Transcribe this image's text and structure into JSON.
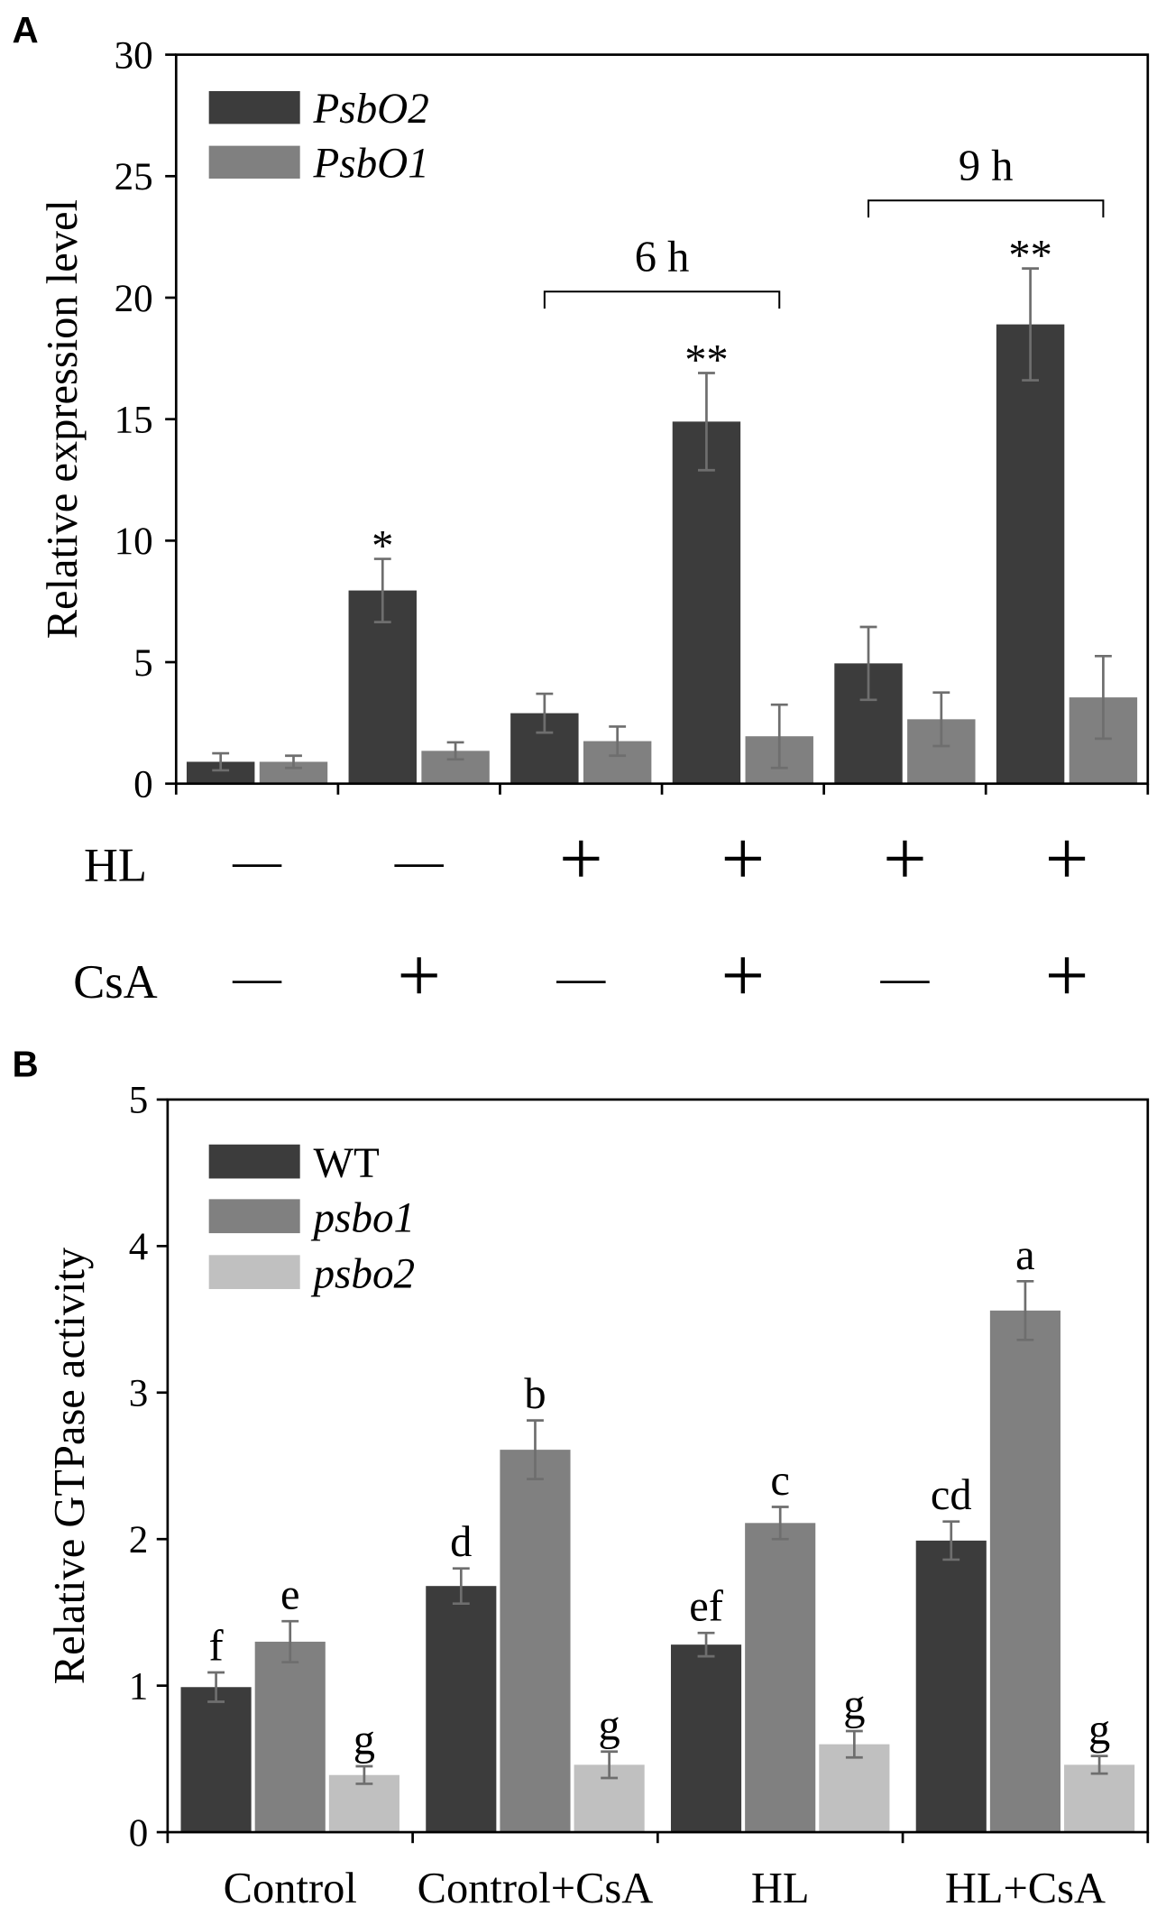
{
  "panels": {
    "a_label": "A",
    "b_label": "B"
  },
  "chart_data": [
    {
      "panel": "A",
      "type": "bar",
      "title": "",
      "xlabel": "",
      "ylabel": "Relative expression level",
      "ylim": [
        0,
        30
      ],
      "yticks": [
        0,
        5,
        10,
        15,
        20,
        25,
        30
      ],
      "legend": "top-left",
      "error_bar_color": "#6e6e6e",
      "series": [
        {
          "name": "PsbO2",
          "italic": true,
          "color": "#3c3c3c",
          "values": [
            0.9,
            7.95,
            2.9,
            14.9,
            4.95,
            18.9
          ],
          "errors": [
            0.35,
            1.3,
            0.8,
            2.0,
            1.5,
            2.3
          ]
        },
        {
          "name": "PsbO1",
          "italic": true,
          "color": "#808080",
          "values": [
            0.9,
            1.35,
            1.75,
            1.95,
            2.65,
            3.55
          ],
          "errors": [
            0.25,
            0.35,
            0.6,
            1.3,
            1.1,
            1.7
          ]
        }
      ],
      "treatment_rows": [
        {
          "label": "HL",
          "symbols": [
            "—",
            "—",
            "+",
            "+",
            "+",
            "+"
          ]
        },
        {
          "label": "CsA",
          "symbols": [
            "—",
            "+",
            "—",
            "+",
            "—",
            "+"
          ]
        }
      ],
      "significance": [
        {
          "series": 0,
          "index": 1,
          "text": "*"
        },
        {
          "series": 0,
          "index": 3,
          "text": "**"
        },
        {
          "series": 0,
          "index": 5,
          "text": "**"
        }
      ],
      "brackets": [
        {
          "label": "6 h",
          "start": {
            "series": 0,
            "index": 2
          },
          "end": {
            "series": 1,
            "index": 3
          }
        },
        {
          "label": "9 h",
          "start": {
            "series": 0,
            "index": 4
          },
          "end": {
            "series": 1,
            "index": 5
          }
        }
      ]
    },
    {
      "panel": "B",
      "type": "bar",
      "title": "",
      "xlabel": "",
      "ylabel": "Relative GTPase activity",
      "ylim": [
        0,
        5
      ],
      "yticks": [
        0,
        1,
        2,
        3,
        4,
        5
      ],
      "legend": "top-left",
      "error_bar_color": "#6e6e6e",
      "categories": [
        "Control",
        "Control+CsA",
        "HL",
        "HL+CsA"
      ],
      "series": [
        {
          "name": "WT",
          "italic": false,
          "color": "#3c3c3c",
          "values": [
            0.99,
            1.68,
            1.28,
            1.99
          ],
          "errors": [
            0.1,
            0.12,
            0.08,
            0.13
          ],
          "letters": [
            "f",
            "d",
            "ef",
            "cd"
          ]
        },
        {
          "name": "psbo1",
          "italic": true,
          "color": "#808080",
          "values": [
            1.3,
            2.61,
            2.11,
            3.56
          ],
          "errors": [
            0.14,
            0.2,
            0.11,
            0.2
          ],
          "letters": [
            "e",
            "b",
            "c",
            "a"
          ]
        },
        {
          "name": "psbo2",
          "italic": true,
          "color": "#c0c0c0",
          "values": [
            0.39,
            0.46,
            0.6,
            0.46
          ],
          "errors": [
            0.06,
            0.09,
            0.09,
            0.06
          ],
          "letters": [
            "g",
            "g",
            "g",
            "g"
          ]
        }
      ]
    }
  ]
}
